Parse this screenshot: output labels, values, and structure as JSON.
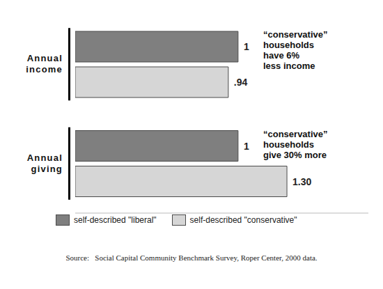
{
  "chart_data": {
    "type": "bar",
    "orientation": "horizontal",
    "categories": [
      "Annual income",
      "Annual giving"
    ],
    "series": [
      {
        "name": "self-described \"liberal\"",
        "color": "#7f7f7f",
        "values": [
          1,
          1
        ],
        "value_labels": [
          "1",
          "1"
        ]
      },
      {
        "name": "self-described \"conservative\"",
        "color": "#d6d6d6",
        "values": [
          0.94,
          1.3
        ],
        "value_labels": [
          ".94",
          "1.30"
        ]
      }
    ],
    "xlim": [
      0,
      1.8
    ],
    "tick_labels": "y",
    "grid": false,
    "legend": "bottom",
    "data_labels": true,
    "annotations": [
      {
        "category": "Annual income",
        "text": [
          "“conservative”",
          "households",
          "have 6%",
          "less income"
        ]
      },
      {
        "category": "Annual giving",
        "text": [
          "“conservative”",
          "households",
          "give 30% more"
        ]
      }
    ],
    "source": "Source:   Social Capital Community Benchmark Survey, Roper Center, 2000 data."
  }
}
